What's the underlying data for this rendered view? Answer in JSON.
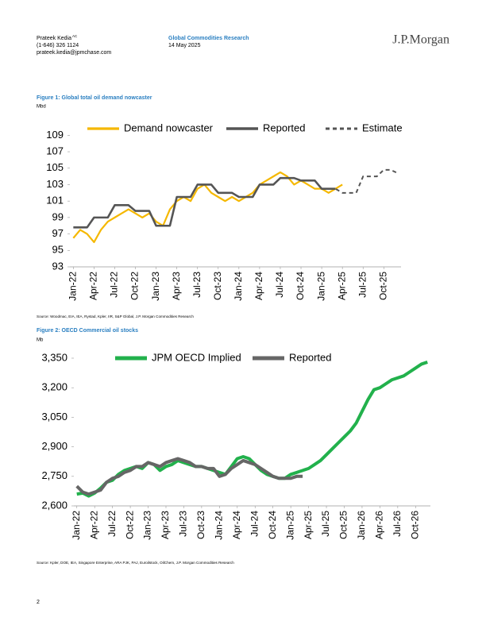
{
  "header": {
    "author": "Prateek Kedia",
    "author_sup": "AC",
    "phone": "(1-646) 326 1124",
    "email": "prateek.kedia@jpmchase.com",
    "department": "Global Commodities Research",
    "date": "14 May 2025",
    "logo": "J.P.Morgan"
  },
  "page_number": "2",
  "chart_data": [
    {
      "type": "line",
      "title": "Figure 1: Global total oil demand nowcaster",
      "ylabel": "Mbd",
      "source": "Source: Woodmac, EIA, IEA, Rystad, Kpler, IIR, S&P Global, J.P. Morgan Commodities Research",
      "categories": [
        "Jan-22",
        null,
        null,
        "Apr-22",
        null,
        null,
        "Jul-22",
        null,
        null,
        "Oct-22",
        null,
        null,
        "Jan-23",
        null,
        null,
        "Apr-23",
        null,
        null,
        "Jul-23",
        null,
        null,
        "Oct-23",
        null,
        null,
        "Jan-24",
        null,
        null,
        "Apr-24",
        null,
        null,
        "Jul-24",
        null,
        null,
        "Oct-24",
        null,
        null,
        "Jan-25",
        null,
        null,
        "Apr-25",
        null,
        null,
        "Jul-25",
        null,
        null,
        "Oct-25",
        null,
        null
      ],
      "series": [
        {
          "name": "Demand nowcaster",
          "color": "#f5b800",
          "dash": false,
          "values": [
            96.5,
            97.5,
            97,
            96,
            97.5,
            98.5,
            99,
            99.5,
            100,
            99.5,
            99,
            99.5,
            98.5,
            98,
            100,
            101,
            101.5,
            101,
            102.5,
            103,
            102,
            101.5,
            101,
            101.5,
            101,
            101.5,
            102,
            103,
            103.5,
            104,
            104.5,
            104,
            103,
            103.5,
            103,
            102.5,
            102.5,
            102,
            102.5,
            103,
            null,
            null,
            null,
            null,
            null,
            null,
            null,
            null
          ]
        },
        {
          "name": "Reported",
          "color": "#555555",
          "dash": false,
          "values": [
            97.8,
            97.8,
            97.8,
            99,
            99,
            99,
            100.5,
            100.5,
            100.5,
            99.8,
            99.8,
            99.8,
            98,
            98,
            98,
            101.5,
            101.5,
            101.5,
            103,
            103,
            103,
            102,
            102,
            102,
            101.5,
            101.5,
            101.5,
            103,
            103,
            103,
            103.8,
            103.8,
            103.8,
            103.5,
            103.5,
            103.5,
            102.5,
            102.5,
            102.5,
            null,
            null,
            null,
            null,
            null,
            null,
            null,
            null,
            null
          ]
        },
        {
          "name": "Estimate",
          "color": "#555555",
          "dash": true,
          "values": [
            null,
            null,
            null,
            null,
            null,
            null,
            null,
            null,
            null,
            null,
            null,
            null,
            null,
            null,
            null,
            null,
            null,
            null,
            null,
            null,
            null,
            null,
            null,
            null,
            null,
            null,
            null,
            null,
            null,
            null,
            null,
            null,
            null,
            null,
            null,
            null,
            102.5,
            102.5,
            102.5,
            102,
            102,
            102,
            104,
            104,
            104,
            104.8,
            104.8,
            104.4
          ]
        }
      ],
      "ylim": [
        93,
        110
      ],
      "yticks": [
        93,
        95,
        97,
        99,
        101,
        103,
        105,
        107,
        109
      ]
    },
    {
      "type": "line",
      "title": "Figure 2: OECD Commercial oil stocks",
      "ylabel": "Mb",
      "source": "Source: Kpler, DOE, IEA, Singapore Enterprise, ARA PJK, PAJ, Euroilstock, OilChem, J.P. Morgan Commodities Research",
      "categories": [
        "Jan-22",
        null,
        null,
        "Apr-22",
        null,
        null,
        "Jul-22",
        null,
        null,
        "Oct-22",
        null,
        null,
        "Jan-23",
        null,
        null,
        "Apr-23",
        null,
        null,
        "Jul-23",
        null,
        null,
        "Oct-23",
        null,
        null,
        "Jan-24",
        null,
        null,
        "Apr-24",
        null,
        null,
        "Jul-24",
        null,
        null,
        "Oct-24",
        null,
        null,
        "Jan-25",
        null,
        null,
        "Apr-25",
        null,
        null,
        "Jul-25",
        null,
        null,
        "Oct-25",
        null,
        null,
        "Jan-26",
        null,
        null,
        "Apr-26",
        null,
        null,
        "Jul-26",
        null,
        null,
        "Oct-26",
        null,
        null
      ],
      "series": [
        {
          "name": "JPM OECD Implied",
          "color": "#22b14c",
          "dash": false,
          "values": [
            2660,
            2665,
            2650,
            2665,
            2690,
            2720,
            2730,
            2760,
            2780,
            2790,
            2800,
            2790,
            2820,
            2810,
            2780,
            2800,
            2810,
            2830,
            2820,
            2810,
            2800,
            2800,
            2790,
            2780,
            2770,
            2760,
            2800,
            2840,
            2850,
            2840,
            2810,
            2780,
            2760,
            2750,
            2740,
            2740,
            2760,
            2770,
            2780,
            2790,
            2810,
            2830,
            2860,
            2890,
            2920,
            2950,
            2980,
            3020,
            3080,
            3140,
            3190,
            3200,
            3220,
            3240,
            3250,
            3260,
            3280,
            3300,
            3320,
            3330
          ]
        },
        {
          "name": "Reported",
          "color": "#666666",
          "dash": false,
          "values": [
            2700,
            2670,
            2660,
            2670,
            2680,
            2720,
            2740,
            2750,
            2770,
            2780,
            2800,
            2800,
            2820,
            2810,
            2800,
            2820,
            2830,
            2840,
            2830,
            2820,
            2800,
            2800,
            2790,
            2790,
            2750,
            2760,
            2790,
            2810,
            2830,
            2820,
            2810,
            2790,
            2770,
            2750,
            2740,
            2740,
            2740,
            2750,
            2750,
            null,
            null,
            null,
            null,
            null,
            null,
            null,
            null,
            null,
            null,
            null,
            null,
            null,
            null,
            null,
            null,
            null,
            null,
            null,
            null,
            null
          ]
        }
      ],
      "ylim": [
        2600,
        3350
      ],
      "yticks": [
        {
          "value": 2600,
          "label": "2,600"
        },
        {
          "value": 2750,
          "label": "2,750"
        },
        {
          "value": 2900,
          "label": "2,900"
        },
        {
          "value": 3050,
          "label": "3,050"
        },
        {
          "value": 3200,
          "label": "3,200"
        },
        {
          "value": 3350,
          "label": "3,350"
        }
      ]
    }
  ]
}
